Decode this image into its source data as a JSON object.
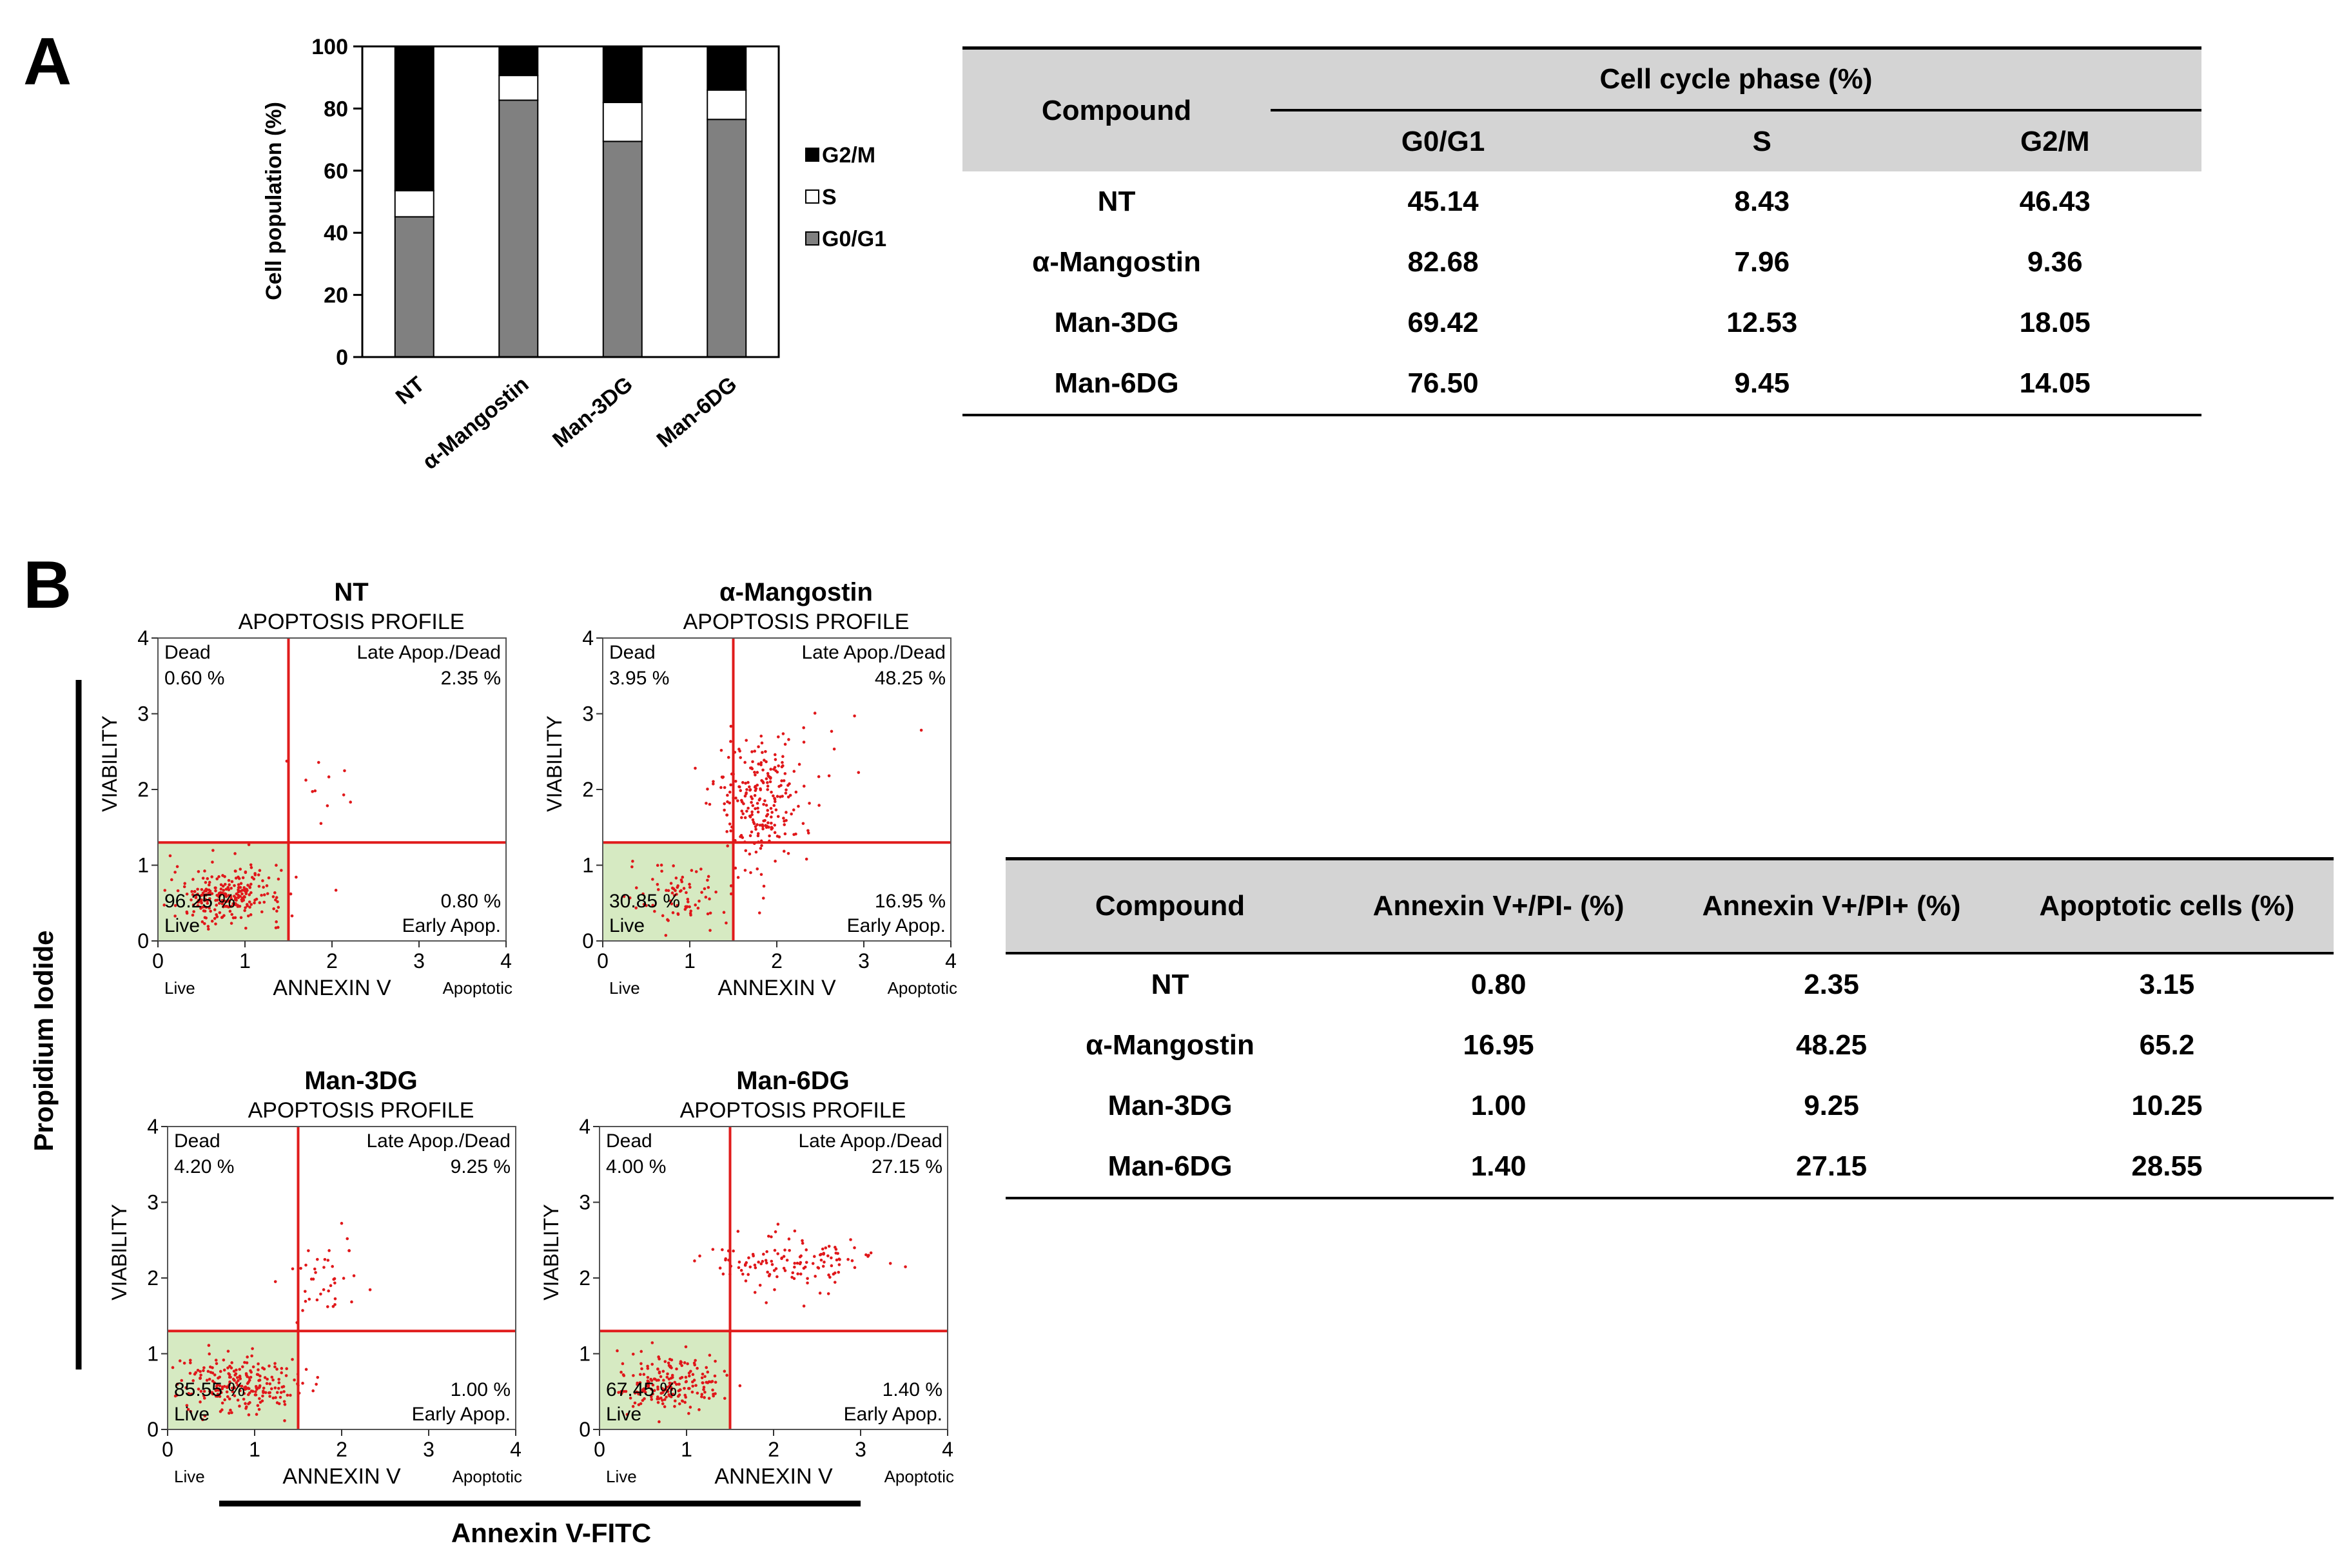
{
  "panels": {
    "a": "A",
    "b": "B"
  },
  "chart_data": [
    {
      "type": "bar",
      "stacked": true,
      "categories": [
        "NT",
        "α-Mangostin",
        "Man-3DG",
        "Man-6DG"
      ],
      "series": [
        {
          "name": "G0/G1",
          "color": "#808080",
          "values": [
            45.14,
            82.68,
            69.42,
            76.5
          ]
        },
        {
          "name": "S",
          "color": "#ffffff",
          "values": [
            8.43,
            7.96,
            12.53,
            9.45
          ]
        },
        {
          "name": "G2/M",
          "color": "#000000",
          "values": [
            46.43,
            9.36,
            18.05,
            14.05
          ]
        }
      ],
      "legend_order": [
        "G2/M",
        "S",
        "G0/G1"
      ],
      "ylabel": "Cell population (%)",
      "ylim": [
        0,
        100
      ],
      "yticks": [
        "0",
        "20",
        "40",
        "60",
        "80",
        "100"
      ],
      "legend": "right"
    },
    {
      "type": "scatter",
      "subtype": "flow-cytometry-quadrant",
      "x_label": "ANNEXIN V",
      "y_label": "VIABILITY",
      "subtitle": "APOPTOSIS PROFILE",
      "xticks": [
        "0",
        "1",
        "2",
        "3",
        "4"
      ],
      "yticks": [
        "0",
        "1",
        "2",
        "3",
        "4"
      ],
      "x_left_label": "Live",
      "x_right_label": "Apoptotic",
      "quadrant_labels": {
        "ul": "Dead",
        "ur": "Late Apop./Dead",
        "ll": "Live",
        "lr": "Early Apop."
      },
      "gate_x": 1.5,
      "gate_y": 1.3,
      "common_xlabel": "Annexin V-FITC",
      "common_ylabel": "Propidium Iodide",
      "plots": [
        {
          "title": "NT",
          "dead": "0.60 %",
          "late": "2.35 %",
          "live": "96.25 %",
          "early": "0.80 %"
        },
        {
          "title": "α-Mangostin",
          "dead": "3.95 %",
          "late": "48.25 %",
          "live": "30.85 %",
          "early": "16.95 %"
        },
        {
          "title": "Man-3DG",
          "dead": "4.20 %",
          "late": "9.25 %",
          "live": "85.55 %",
          "early": "1.00 %"
        },
        {
          "title": "Man-6DG",
          "dead": "4.00 %",
          "late": "27.15 %",
          "live": "67.45 %",
          "early": "1.40 %"
        }
      ]
    }
  ],
  "table1": {
    "compound_header": "Compound",
    "group_header": "Cell cycle phase (%)",
    "columns": [
      "G0/G1",
      "S",
      "G2/M"
    ],
    "rows": [
      {
        "name": "NT",
        "values": [
          "45.14",
          "8.43",
          "46.43"
        ]
      },
      {
        "name": "α-Mangostin",
        "values": [
          "82.68",
          "7.96",
          "9.36"
        ]
      },
      {
        "name": "Man-3DG",
        "values": [
          "69.42",
          "12.53",
          "18.05"
        ]
      },
      {
        "name": "Man-6DG",
        "values": [
          "76.50",
          "9.45",
          "14.05"
        ]
      }
    ]
  },
  "table2": {
    "columns": [
      "Compound",
      "Annexin V+/PI- (%)",
      "Annexin V+/PI+ (%)",
      "Apoptotic cells (%)"
    ],
    "rows": [
      {
        "name": "NT",
        "values": [
          "0.80",
          "2.35",
          "3.15"
        ]
      },
      {
        "name": "α-Mangostin",
        "values": [
          "16.95",
          "48.25",
          "65.2"
        ]
      },
      {
        "name": "Man-3DG",
        "values": [
          "1.00",
          "9.25",
          "10.25"
        ]
      },
      {
        "name": "Man-6DG",
        "values": [
          "1.40",
          "27.15",
          "28.55"
        ]
      }
    ]
  }
}
